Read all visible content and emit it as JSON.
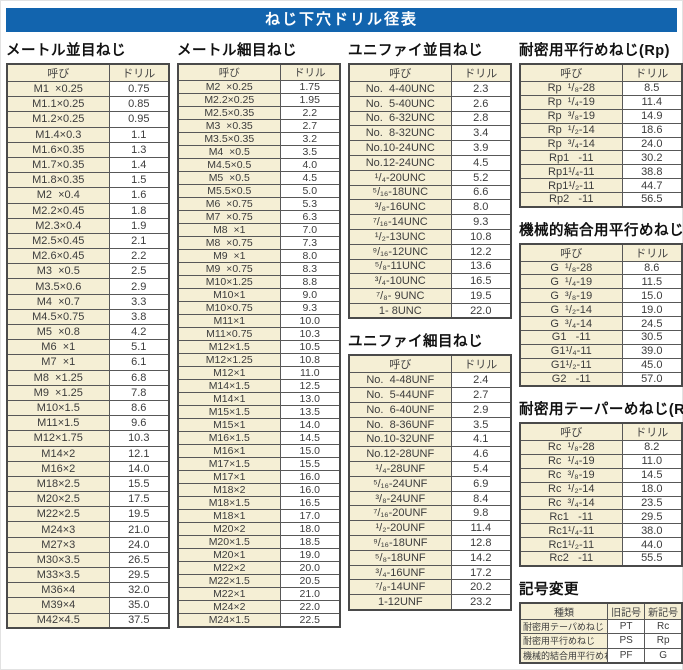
{
  "page": {
    "title": "ねじ下穴ドリル径表"
  },
  "colors": {
    "accent": "#1264ae",
    "cell_bg": "#f5efd5",
    "border": "#4a4a4a"
  },
  "tables": [
    {
      "id": "metric-coarse",
      "title": "メートル並目ねじ",
      "columns": [
        "呼び",
        "ドリル"
      ],
      "rows": [
        [
          "M1  ×0.25",
          "0.75"
        ],
        [
          "M1.1×0.25",
          "0.85"
        ],
        [
          "M1.2×0.25",
          "0.95"
        ],
        [
          "M1.4×0.3",
          "1.1"
        ],
        [
          "M1.6×0.35",
          "1.3"
        ],
        [
          "M1.7×0.35",
          "1.4"
        ],
        [
          "M1.8×0.35",
          "1.5"
        ],
        [
          "M2  ×0.4",
          "1.6"
        ],
        [
          "M2.2×0.45",
          "1.8"
        ],
        [
          "M2.3×0.4",
          "1.9"
        ],
        [
          "M2.5×0.45",
          "2.1"
        ],
        [
          "M2.6×0.45",
          "2.2"
        ],
        [
          "M3  ×0.5",
          "2.5"
        ],
        [
          "M3.5×0.6",
          "2.9"
        ],
        [
          "M4  ×0.7",
          "3.3"
        ],
        [
          "M4.5×0.75",
          "3.8"
        ],
        [
          "M5  ×0.8",
          "4.2"
        ],
        [
          "M6  ×1",
          "5.1"
        ],
        [
          "M7  ×1",
          "6.1"
        ],
        [
          "M8  ×1.25",
          "6.8"
        ],
        [
          "M9  ×1.25",
          "7.8"
        ],
        [
          "M10×1.5",
          "8.6"
        ],
        [
          "M11×1.5",
          "9.6"
        ],
        [
          "M12×1.75",
          "10.3"
        ],
        [
          "M14×2",
          "12.1"
        ],
        [
          "M16×2",
          "14.0"
        ],
        [
          "M18×2.5",
          "15.5"
        ],
        [
          "M20×2.5",
          "17.5"
        ],
        [
          "M22×2.5",
          "19.5"
        ],
        [
          "M24×3",
          "21.0"
        ],
        [
          "M27×3",
          "24.0"
        ],
        [
          "M30×3.5",
          "26.5"
        ],
        [
          "M33×3.5",
          "29.5"
        ],
        [
          "M36×4",
          "32.0"
        ],
        [
          "M39×4",
          "35.0"
        ],
        [
          "M42×4.5",
          "37.5"
        ]
      ]
    },
    {
      "id": "metric-fine",
      "title": "メートル細目ねじ",
      "columns": [
        "呼び",
        "ドリル"
      ],
      "rows": [
        [
          "M2  ×0.25",
          "1.75"
        ],
        [
          "M2.2×0.25",
          "1.95"
        ],
        [
          "M2.5×0.35",
          "2.2"
        ],
        [
          "M3  ×0.35",
          "2.7"
        ],
        [
          "M3.5×0.35",
          "3.2"
        ],
        [
          "M4  ×0.5",
          "3.5"
        ],
        [
          "M4.5×0.5",
          "4.0"
        ],
        [
          "M5  ×0.5",
          "4.5"
        ],
        [
          "M5.5×0.5",
          "5.0"
        ],
        [
          "M6  ×0.75",
          "5.3"
        ],
        [
          "M7  ×0.75",
          "6.3"
        ],
        [
          "M8  ×1",
          "7.0"
        ],
        [
          "M8  ×0.75",
          "7.3"
        ],
        [
          "M9  ×1",
          "8.0"
        ],
        [
          "M9  ×0.75",
          "8.3"
        ],
        [
          "M10×1.25",
          "8.8"
        ],
        [
          "M10×1",
          "9.0"
        ],
        [
          "M10×0.75",
          "9.3"
        ],
        [
          "M11×1",
          "10.0"
        ],
        [
          "M11×0.75",
          "10.3"
        ],
        [
          "M12×1.5",
          "10.5"
        ],
        [
          "M12×1.25",
          "10.8"
        ],
        [
          "M12×1",
          "11.0"
        ],
        [
          "M14×1.5",
          "12.5"
        ],
        [
          "M14×1",
          "13.0"
        ],
        [
          "M15×1.5",
          "13.5"
        ],
        [
          "M15×1",
          "14.0"
        ],
        [
          "M16×1.5",
          "14.5"
        ],
        [
          "M16×1",
          "15.0"
        ],
        [
          "M17×1.5",
          "15.5"
        ],
        [
          "M17×1",
          "16.0"
        ],
        [
          "M18×2",
          "16.0"
        ],
        [
          "M18×1.5",
          "16.5"
        ],
        [
          "M18×1",
          "17.0"
        ],
        [
          "M20×2",
          "18.0"
        ],
        [
          "M20×1.5",
          "18.5"
        ],
        [
          "M20×1",
          "19.0"
        ],
        [
          "M22×2",
          "20.0"
        ],
        [
          "M22×1.5",
          "20.5"
        ],
        [
          "M22×1",
          "21.0"
        ],
        [
          "M24×2",
          "22.0"
        ],
        [
          "M24×1.5",
          "22.5"
        ]
      ]
    },
    {
      "id": "unified-coarse",
      "title": "ユニファイ並目ねじ",
      "columns": [
        "呼び",
        "ドリル"
      ],
      "rows": [
        [
          "No.  4-40UNC",
          "2.3"
        ],
        [
          "No.  5-40UNC",
          "2.6"
        ],
        [
          "No.  6-32UNC",
          "2.8"
        ],
        [
          "No.  8-32UNC",
          "3.4"
        ],
        [
          "No.10-24UNC",
          "3.9"
        ],
        [
          "No.12-24UNC",
          "4.5"
        ],
        [
          "¹/₄-20UNC",
          "5.2"
        ],
        [
          "⁵/₁₆-18UNC",
          "6.6"
        ],
        [
          "³/₈-16UNC",
          "8.0"
        ],
        [
          "⁷/₁₆-14UNC",
          "9.3"
        ],
        [
          "¹/₂-13UNC",
          "10.8"
        ],
        [
          "⁹/₁₆-12UNC",
          "12.2"
        ],
        [
          "⁵/₈-11UNC",
          "13.6"
        ],
        [
          "³/₄-10UNC",
          "16.5"
        ],
        [
          "⁷/₈- 9UNC",
          "19.5"
        ],
        [
          "1- 8UNC",
          "22.0"
        ]
      ]
    },
    {
      "id": "unified-fine",
      "title": "ユニファイ細目ねじ",
      "columns": [
        "呼び",
        "ドリル"
      ],
      "rows": [
        [
          "No.  4-48UNF",
          "2.4"
        ],
        [
          "No.  5-44UNF",
          "2.7"
        ],
        [
          "No.  6-40UNF",
          "2.9"
        ],
        [
          "No.  8-36UNF",
          "3.5"
        ],
        [
          "No.10-32UNF",
          "4.1"
        ],
        [
          "No.12-28UNF",
          "4.6"
        ],
        [
          "¹/₄-28UNF",
          "5.4"
        ],
        [
          "⁵/₁₆-24UNF",
          "6.9"
        ],
        [
          "³/₈-24UNF",
          "8.4"
        ],
        [
          "⁷/₁₆-20UNF",
          "9.8"
        ],
        [
          "¹/₂-20UNF",
          "11.4"
        ],
        [
          "⁹/₁₆-18UNF",
          "12.8"
        ],
        [
          "⁵/₈-18UNF",
          "14.2"
        ],
        [
          "³/₄-16UNF",
          "17.2"
        ],
        [
          "⁷/₈-14UNF",
          "20.2"
        ],
        [
          "1-12UNF",
          "23.2"
        ]
      ]
    },
    {
      "id": "rp",
      "title": "耐密用平行めねじ(Rp)",
      "columns": [
        "呼び",
        "ドリル"
      ],
      "rows": [
        [
          "Rp  ¹/₈-28",
          "8.5"
        ],
        [
          "Rp  ¹/₄-19",
          "11.4"
        ],
        [
          "Rp  ³/₈-19",
          "14.9"
        ],
        [
          "Rp  ¹/₂-14",
          "18.6"
        ],
        [
          "Rp  ³/₄-14",
          "24.0"
        ],
        [
          "Rp1   -11",
          "30.2"
        ],
        [
          "Rp1¹/₄-11",
          "38.8"
        ],
        [
          "Rp1¹/₂-11",
          "44.7"
        ],
        [
          "Rp2   -11",
          "56.5"
        ]
      ]
    },
    {
      "id": "g",
      "title": "機械的結合用平行めねじ(G)",
      "columns": [
        "呼び",
        "ドリル"
      ],
      "rows": [
        [
          "G  ¹/₈-28",
          "8.6"
        ],
        [
          "G  ¹/₄-19",
          "11.5"
        ],
        [
          "G  ³/₈-19",
          "15.0"
        ],
        [
          "G  ¹/₂-14",
          "19.0"
        ],
        [
          "G  ³/₄-14",
          "24.5"
        ],
        [
          "G1   -11",
          "30.5"
        ],
        [
          "G1¹/₄-11",
          "39.0"
        ],
        [
          "G1¹/₂-11",
          "45.0"
        ],
        [
          "G2   -11",
          "57.0"
        ]
      ]
    },
    {
      "id": "rc",
      "title": "耐密用テーパーめねじ(Rc)",
      "columns": [
        "呼び",
        "ドリル"
      ],
      "rows": [
        [
          "Rc  ¹/₈-28",
          "8.2"
        ],
        [
          "Rc  ¹/₄-19",
          "11.0"
        ],
        [
          "Rc  ³/₈-19",
          "14.5"
        ],
        [
          "Rc  ¹/₂-14",
          "18.0"
        ],
        [
          "Rc  ³/₄-14",
          "23.5"
        ],
        [
          "Rc1   -11",
          "29.5"
        ],
        [
          "Rc1¹/₄-11",
          "38.0"
        ],
        [
          "Rc1¹/₂-11",
          "44.0"
        ],
        [
          "Rc2   -11",
          "55.5"
        ]
      ]
    },
    {
      "id": "symbol-change",
      "title": "記号変更",
      "columns": [
        "種類",
        "旧記号",
        "新記号"
      ],
      "rows": [
        [
          "耐密用テーパめねじ",
          "PT",
          "Rc"
        ],
        [
          "耐密用平行めねじ",
          "PS",
          "Rp"
        ],
        [
          "機械的結合用平行めねじ",
          "PF",
          "G"
        ]
      ]
    }
  ]
}
